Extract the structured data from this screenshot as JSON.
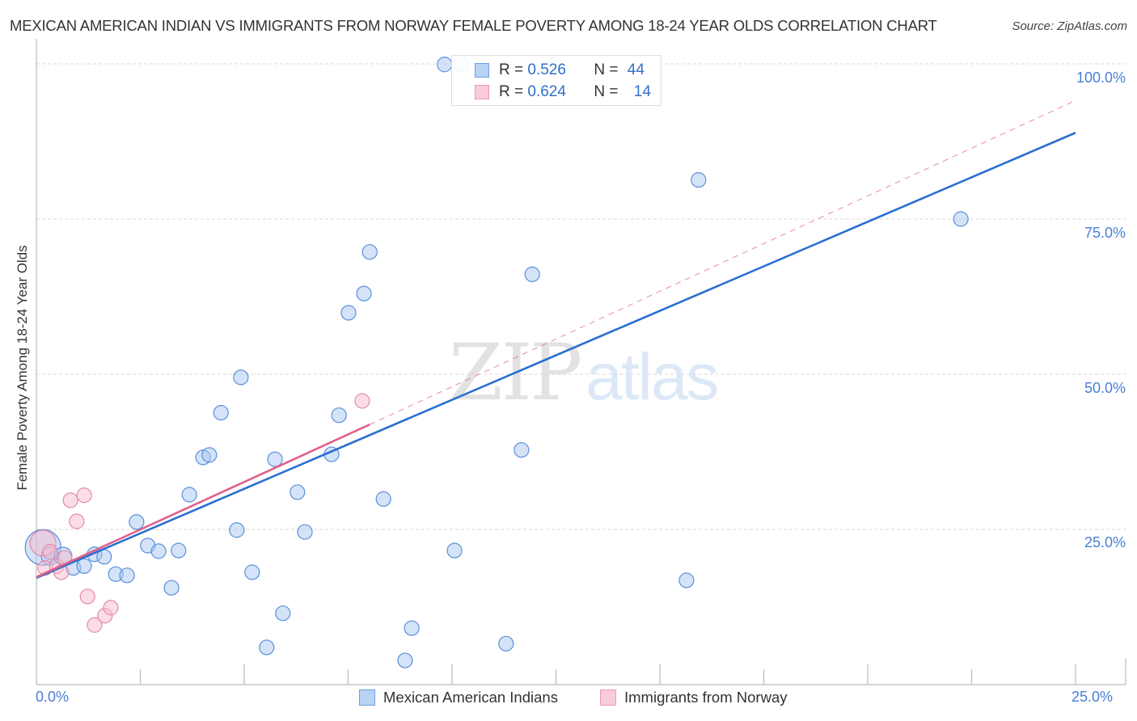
{
  "header": {
    "title": "MEXICAN AMERICAN INDIAN VS IMMIGRANTS FROM NORWAY FEMALE POVERTY AMONG 18-24 YEAR OLDS CORRELATION CHART",
    "source": "Source: ZipAtlas.com"
  },
  "watermark": {
    "zip": "ZIP",
    "atlas": "atlas"
  },
  "legend_top": {
    "series": [
      {
        "name": "Mexican American Indians",
        "r_label": "R = ",
        "r_value": "0.526",
        "n_label": "N = ",
        "n_value": "44",
        "color": "#a9c8f0",
        "stroke": "#6f9fe0"
      },
      {
        "name": "Immigrants from Norway",
        "r_label": "R = ",
        "r_value": "0.624",
        "n_label": "N = ",
        "n_value": "14",
        "color": "#f8c3d3",
        "stroke": "#e58aa8"
      }
    ]
  },
  "legend_bottom": {
    "items": [
      {
        "label": "Mexican American Indians",
        "color": "#a9c8f0"
      },
      {
        "label": "Immigrants from Norway",
        "color": "#f8c3d3"
      }
    ]
  },
  "colors": {
    "blue_fill": "#a9c8f0",
    "blue_stroke": "#5b8fdc",
    "blue_line": "#2a6fd1",
    "pink_fill": "#f6bccd",
    "pink_stroke": "#e48aa8",
    "pink_line": "#e0608a",
    "grid": "#d8d8d8",
    "axis": "#bbbbbb",
    "tick_label": "#4a7fd4"
  },
  "chart_data": {
    "type": "scatter",
    "title": "MEXICAN AMERICAN INDIAN VS IMMIGRANTS FROM NORWAY FEMALE POVERTY AMONG 18-24 YEAR OLDS CORRELATION CHART",
    "xlabel": "",
    "ylabel": "Female Poverty Among 18-24 Year Olds",
    "xlim": [
      0,
      25
    ],
    "ylim": [
      0,
      100
    ],
    "x_tick_labels": [
      "0.0%",
      "25.0%"
    ],
    "y_tick_labels": [
      "100.0%",
      "75.0%",
      "50.0%",
      "25.0%"
    ],
    "y_ticks": [
      100,
      75,
      50,
      25
    ],
    "grid": "horizontal dashed",
    "legend_position": "top-center and bottom",
    "series": [
      {
        "name": "Mexican American Indians",
        "R": 0.526,
        "N": 44,
        "points": [
          [
            0.16,
            22.1,
            22
          ],
          [
            0.33,
            20.7,
            11
          ],
          [
            0.64,
            20.7,
            11
          ],
          [
            0.89,
            18.8,
            9
          ],
          [
            1.15,
            19.1,
            9
          ],
          [
            1.4,
            21.0,
            9
          ],
          [
            1.63,
            20.6,
            9
          ],
          [
            1.91,
            17.8,
            9
          ],
          [
            2.18,
            17.6,
            9
          ],
          [
            2.41,
            26.2,
            9
          ],
          [
            2.68,
            22.4,
            9
          ],
          [
            2.94,
            21.5,
            9
          ],
          [
            3.25,
            15.6,
            9
          ],
          [
            3.42,
            21.6,
            9
          ],
          [
            3.68,
            30.6,
            9
          ],
          [
            4.01,
            36.6,
            9
          ],
          [
            4.16,
            37.0,
            9
          ],
          [
            4.44,
            43.8,
            9
          ],
          [
            4.82,
            24.9,
            9
          ],
          [
            4.92,
            49.5,
            9
          ],
          [
            5.19,
            18.1,
            9
          ],
          [
            5.54,
            6.0,
            9
          ],
          [
            5.74,
            36.3,
            9
          ],
          [
            5.93,
            11.5,
            9
          ],
          [
            6.28,
            31.0,
            9
          ],
          [
            6.46,
            24.6,
            9
          ],
          [
            7.1,
            37.1,
            9
          ],
          [
            7.28,
            43.4,
            9
          ],
          [
            7.51,
            59.9,
            9
          ],
          [
            7.88,
            63.0,
            9
          ],
          [
            8.02,
            69.7,
            9
          ],
          [
            8.35,
            29.9,
            9
          ],
          [
            8.87,
            3.9,
            9
          ],
          [
            9.03,
            9.1,
            9
          ],
          [
            9.82,
            99.9,
            9
          ],
          [
            10.06,
            21.6,
            9
          ],
          [
            10.23,
            99.9,
            9
          ],
          [
            11.3,
            6.6,
            9
          ],
          [
            11.67,
            37.8,
            9
          ],
          [
            11.93,
            66.1,
            9
          ],
          [
            12.47,
            99.9,
            9
          ],
          [
            15.64,
            16.8,
            9
          ],
          [
            15.93,
            81.3,
            9
          ],
          [
            22.24,
            75.0,
            9
          ]
        ],
        "trendline": {
          "x0": 0,
          "y0": 17.2,
          "x1": 25,
          "y1": 88.9,
          "style": "solid"
        }
      },
      {
        "name": "Immigrants from Norway",
        "R": 0.624,
        "N": 14,
        "points": [
          [
            0.16,
            22.8,
            16
          ],
          [
            0.21,
            18.8,
            9
          ],
          [
            0.33,
            21.4,
            9
          ],
          [
            0.49,
            19.1,
            9
          ],
          [
            0.6,
            18.1,
            9
          ],
          [
            0.68,
            20.4,
            9
          ],
          [
            0.82,
            29.7,
            9
          ],
          [
            0.97,
            26.3,
            9
          ],
          [
            1.15,
            30.5,
            9
          ],
          [
            1.23,
            14.2,
            9
          ],
          [
            1.4,
            9.6,
            9
          ],
          [
            1.65,
            11.1,
            9
          ],
          [
            1.79,
            12.4,
            9
          ],
          [
            7.84,
            45.7,
            9
          ]
        ],
        "trendline": {
          "x0": 0,
          "y0": 17.2,
          "x1": 8.02,
          "y1": 41.9,
          "style": "solid",
          "extended_to": [
            25,
            94.1
          ],
          "extended_style": "dashed"
        }
      }
    ]
  }
}
